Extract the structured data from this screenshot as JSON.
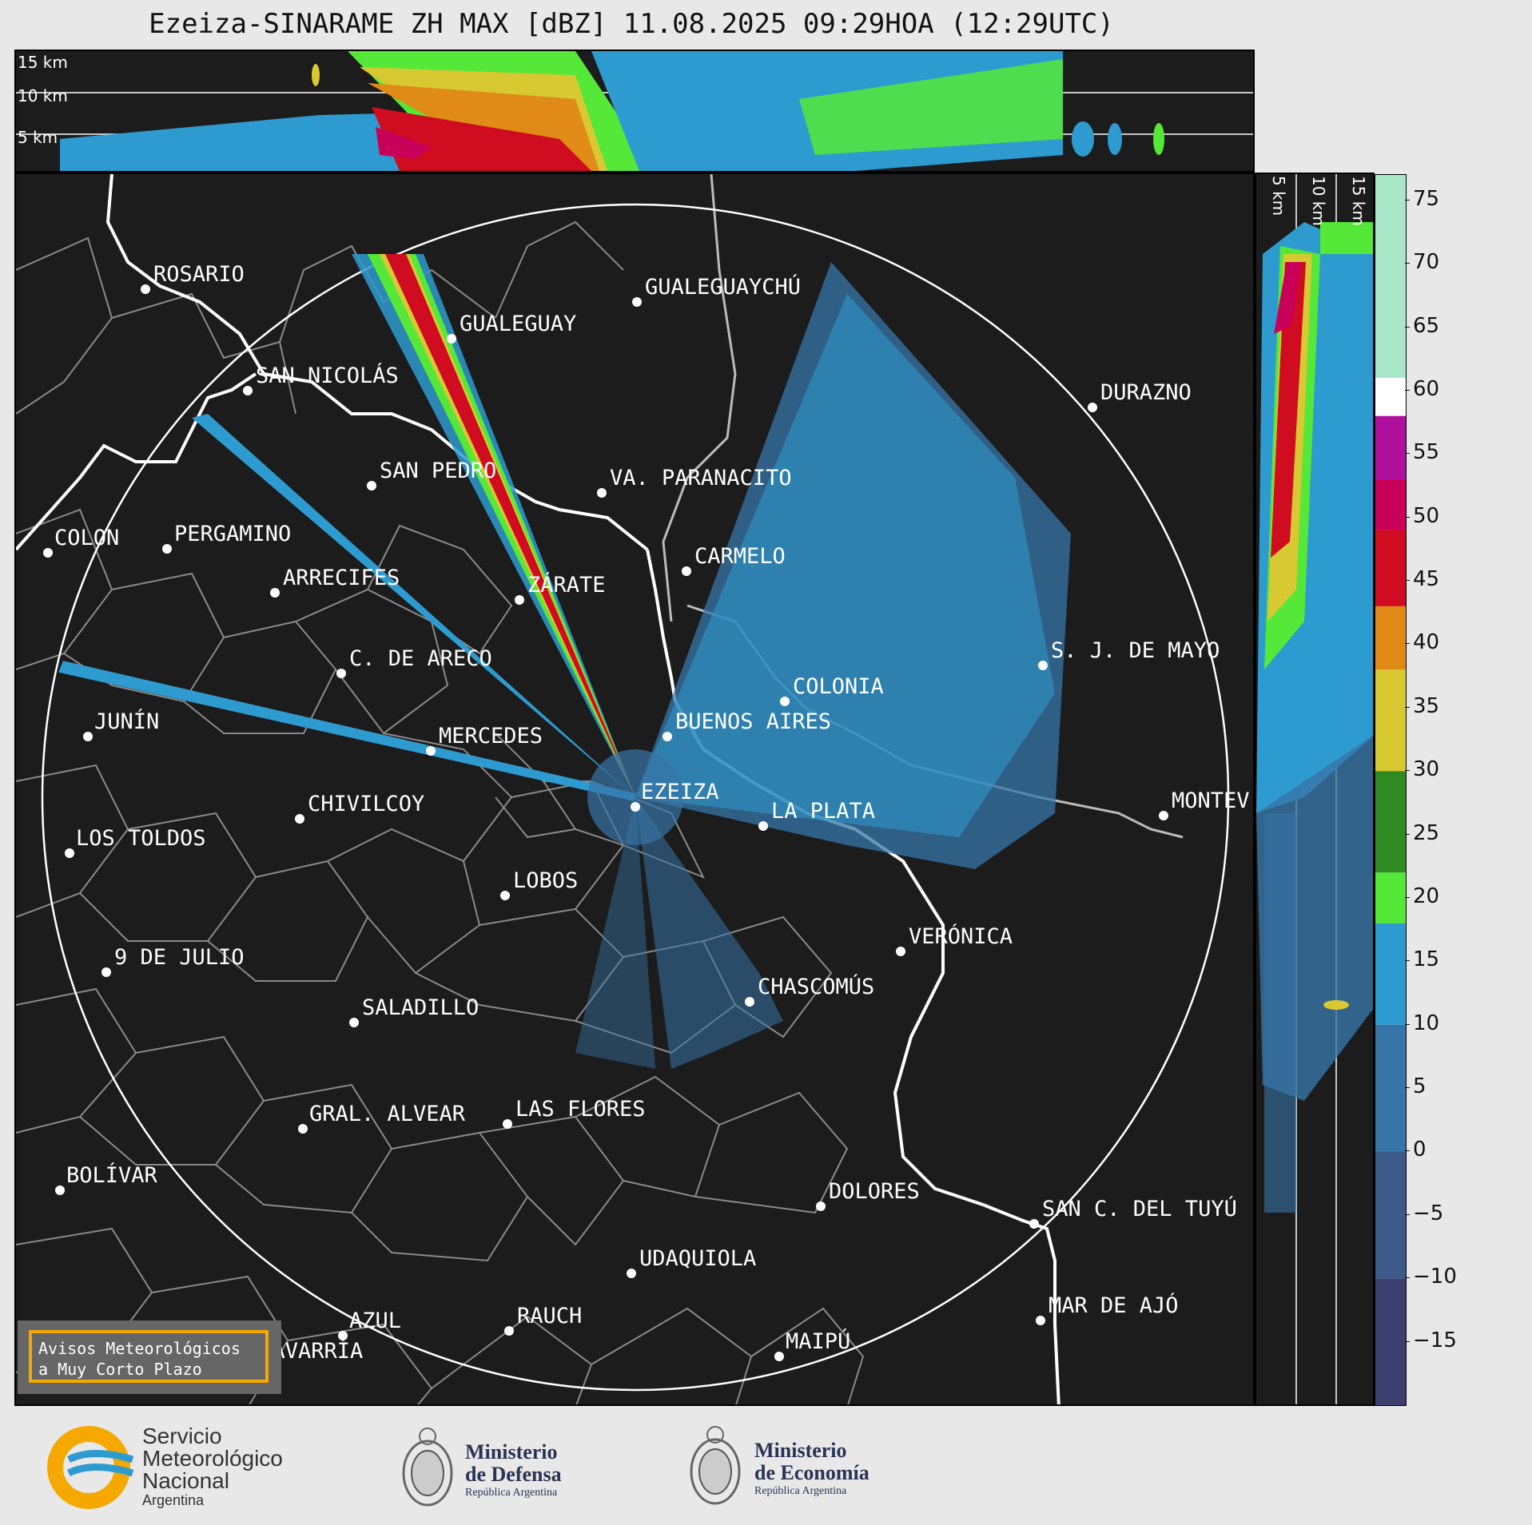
{
  "title": "Ezeiza-SINARAME ZH MAX [dBZ] 11.08.2025 09:29HOA (12:29UTC)",
  "height_labels_top": [
    "15 km",
    "10 km",
    "5 km"
  ],
  "height_labels_side": [
    "5 km",
    "10 km",
    "15 km"
  ],
  "colorbar": {
    "unit": "dBZ",
    "ticks": [
      "75",
      "70",
      "65",
      "60",
      "55",
      "50",
      "45",
      "40",
      "35",
      "30",
      "25",
      "20",
      "15",
      "10",
      "5",
      "0",
      "−5",
      "−10",
      "−15"
    ],
    "tick_values": [
      75,
      70,
      65,
      60,
      55,
      50,
      45,
      40,
      35,
      30,
      25,
      20,
      15,
      10,
      5,
      0,
      -5,
      -10,
      -15
    ],
    "range": [
      -20,
      77
    ],
    "bands": [
      {
        "from": -20,
        "to": -10,
        "color": "#3d3f6e"
      },
      {
        "from": -10,
        "to": 0,
        "color": "#3b5a8a"
      },
      {
        "from": 0,
        "to": 10,
        "color": "#3775a8"
      },
      {
        "from": 10,
        "to": 18,
        "color": "#2e9bd0"
      },
      {
        "from": 18,
        "to": 22,
        "color": "#55e838"
      },
      {
        "from": 22,
        "to": 30,
        "color": "#2f8a23"
      },
      {
        "from": 30,
        "to": 38,
        "color": "#d8c832"
      },
      {
        "from": 38,
        "to": 43,
        "color": "#e08a18"
      },
      {
        "from": 43,
        "to": 49,
        "color": "#cf0c20"
      },
      {
        "from": 49,
        "to": 53,
        "color": "#c8005a"
      },
      {
        "from": 53,
        "to": 58,
        "color": "#b0109e"
      },
      {
        "from": 58,
        "to": 61,
        "color": "#ffffff"
      },
      {
        "from": 61,
        "to": 77,
        "color": "#a8e8c8"
      }
    ]
  },
  "cities": [
    {
      "name": "ROSARIO"
    },
    {
      "name": "GUALEGUAYCHÚ"
    },
    {
      "name": "GUALEGUAY"
    },
    {
      "name": "SAN NICOLÁS"
    },
    {
      "name": "DURAZNO"
    },
    {
      "name": "SAN PEDRO"
    },
    {
      "name": "VA. PARANACITO"
    },
    {
      "name": "COLON"
    },
    {
      "name": "PERGAMINO"
    },
    {
      "name": "CARMELO"
    },
    {
      "name": "ARRECIFES"
    },
    {
      "name": "ZÁRATE"
    },
    {
      "name": "S. J. DE MAYO"
    },
    {
      "name": "C. DE ARECO"
    },
    {
      "name": "COLONIA"
    },
    {
      "name": "JUNÍN"
    },
    {
      "name": "BUENOS AIRES"
    },
    {
      "name": "MERCEDES"
    },
    {
      "name": "EZEIZA"
    },
    {
      "name": "MONTEV"
    },
    {
      "name": "CHIVILCOY"
    },
    {
      "name": "LA PLATA"
    },
    {
      "name": "LOS TOLDOS"
    },
    {
      "name": "LOBOS"
    },
    {
      "name": "VERÓNICA"
    },
    {
      "name": "9 DE JULIO"
    },
    {
      "name": "CHASCOMÚS"
    },
    {
      "name": "SALADILLO"
    },
    {
      "name": "GRAL. ALVEAR"
    },
    {
      "name": "LAS FLORES"
    },
    {
      "name": "BOLÍVAR"
    },
    {
      "name": "DOLORES"
    },
    {
      "name": "SAN C. DEL TUYÚ"
    },
    {
      "name": "UDAQUIOLA"
    },
    {
      "name": "MAR DE AJÓ"
    },
    {
      "name": "AZUL"
    },
    {
      "name": "RAUCH"
    },
    {
      "name": "MAIPÚ"
    },
    {
      "name": "OLAVARRÍA"
    }
  ],
  "notice": {
    "line1": "Avisos Meteorológicos",
    "line2": "a Muy Corto Plazo"
  },
  "logos": {
    "smn": {
      "line1": "Servicio",
      "line2": "Meteorológico",
      "line3": "Nacional",
      "line4": "Argentina"
    },
    "defensa": {
      "line1": "Ministerio",
      "line2": "de Defensa",
      "line3": "República Argentina"
    },
    "economia": {
      "line1": "Ministerio",
      "line2": "de Economía",
      "line3": "República Argentina"
    }
  }
}
